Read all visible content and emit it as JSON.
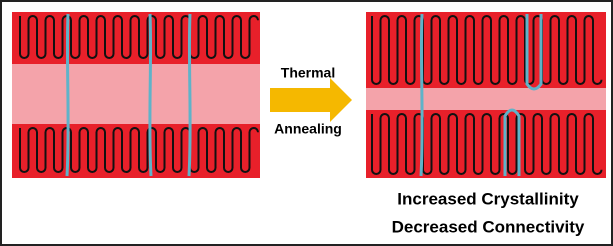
{
  "arrow": {
    "top_label": "Thermal",
    "bottom_label": "Annealing"
  },
  "result": {
    "line1": "Increased Crystallinity",
    "line2": "Decreased Connectivity"
  }
}
